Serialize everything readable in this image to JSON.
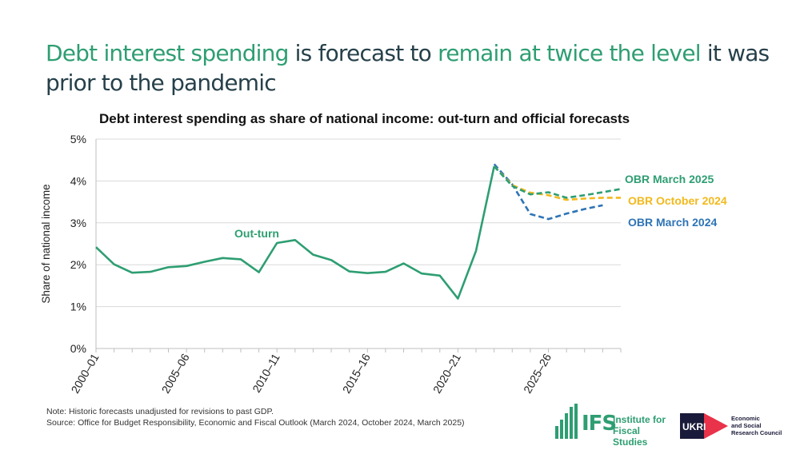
{
  "headline": {
    "part1": "Debt interest spending",
    "part2": " is forecast to ",
    "part3": "remain at twice the level",
    "part4": " it was prior to the pandemic"
  },
  "colors": {
    "green": "#2e9e72",
    "orange": "#f2b91c",
    "blue": "#2e74b5",
    "headline_dark": "#26404a"
  },
  "chart_data": {
    "type": "line",
    "title": "Debt interest spending as share of national income: out-turn and official forecasts",
    "xlabel": "",
    "ylabel": "Share of national income",
    "ylim": [
      0,
      5
    ],
    "xlim": [
      2000,
      2029
    ],
    "yticks": [
      0,
      1,
      2,
      3,
      4,
      5
    ],
    "ytick_labels": [
      "0%",
      "1%",
      "2%",
      "3%",
      "4%",
      "5%"
    ],
    "xtick_labels": [
      "2000–01",
      "2005–06",
      "2010–11",
      "2015–16",
      "2020–21",
      "2025–26"
    ],
    "xtick_values": [
      2000,
      2005,
      2010,
      2015,
      2020,
      2025
    ],
    "series": [
      {
        "name": "Out-turn",
        "style": "solid",
        "color": "#2e9e72",
        "x": [
          2000,
          2001,
          2002,
          2003,
          2004,
          2005,
          2006,
          2007,
          2008,
          2009,
          2010,
          2011,
          2012,
          2013,
          2014,
          2015,
          2016,
          2017,
          2018,
          2019,
          2020,
          2021,
          2022
        ],
        "values": [
          2.42,
          2.01,
          1.81,
          1.83,
          1.94,
          1.97,
          2.07,
          2.16,
          2.13,
          1.82,
          2.52,
          2.59,
          2.24,
          2.11,
          1.84,
          1.8,
          1.83,
          2.03,
          1.79,
          1.74,
          1.19,
          2.33,
          4.35
        ]
      },
      {
        "name": "OBR March 2025",
        "style": "dashed",
        "color": "#2e9e72",
        "x": [
          2022,
          2023,
          2024,
          2025,
          2026,
          2027,
          2028,
          2029
        ],
        "values": [
          4.35,
          3.88,
          3.68,
          3.73,
          3.6,
          3.66,
          3.73,
          3.81
        ]
      },
      {
        "name": "OBR October 2024",
        "style": "dashed",
        "color": "#f2b91c",
        "x": [
          2022,
          2023,
          2024,
          2025,
          2026,
          2027,
          2028,
          2029
        ],
        "values": [
          4.35,
          3.9,
          3.72,
          3.66,
          3.55,
          3.58,
          3.6,
          3.6
        ]
      },
      {
        "name": "OBR March 2024",
        "style": "dashed",
        "color": "#2e74b5",
        "x": [
          2022,
          2023,
          2024,
          2025,
          2026,
          2027,
          2028
        ],
        "values": [
          4.4,
          3.92,
          3.21,
          3.09,
          3.22,
          3.33,
          3.42
        ]
      }
    ],
    "annotations": [
      {
        "text": "Out-turn",
        "color": "#2e9e72"
      },
      {
        "text": "OBR March 2025",
        "color": "#2e9e72"
      },
      {
        "text": "OBR October 2024",
        "color": "#f2b91c"
      },
      {
        "text": "OBR March 2024",
        "color": "#2e74b5"
      }
    ]
  },
  "footnotes": {
    "note": "Note: Historic forecasts unadjusted for revisions to past GDP.",
    "source": "Source: Office for Budget Responsibility, Economic and Fiscal Outlook (March 2024, October 2024, March 2025)"
  },
  "logos": {
    "ifs_abbrev": "IFS",
    "ifs_name_line1": "Institute for",
    "ifs_name_line2": "Fiscal Studies",
    "ukri_text": "UKRI",
    "esrc_line1": "Economic",
    "esrc_line2": "and Social",
    "esrc_line3": "Research Council"
  }
}
